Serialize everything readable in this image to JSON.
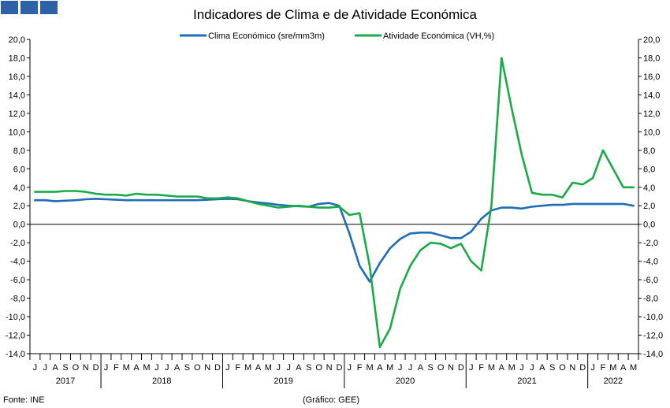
{
  "chart_data": {
    "type": "line",
    "title": "Indicadores de Clima e de Atividade Económica",
    "ylim": [
      -14,
      20
    ],
    "y_ticks": [
      "20,0",
      "18,0",
      "16,0",
      "14,0",
      "12,0",
      "10,0",
      "8,0",
      "6,0",
      "4,0",
      "2,0",
      "0,0",
      "-2,0",
      "-4,0",
      "-6,0",
      "-8,0",
      "-10,0",
      "-12,0",
      "-14,0"
    ],
    "month_labels": [
      "J",
      "J",
      "A",
      "S",
      "O",
      "N",
      "D",
      "J",
      "F",
      "M",
      "A",
      "M",
      "J",
      "J",
      "A",
      "S",
      "O",
      "N",
      "D",
      "J",
      "F",
      "M",
      "A",
      "M",
      "J",
      "J",
      "A",
      "S",
      "O",
      "N",
      "D",
      "J",
      "F",
      "M",
      "A",
      "M",
      "J",
      "J",
      "A",
      "S",
      "O",
      "N",
      "D",
      "J",
      "F",
      "M",
      "A",
      "M",
      "J",
      "J",
      "A",
      "S",
      "O",
      "N",
      "D",
      "J",
      "F",
      "M",
      "A",
      "M"
    ],
    "years": [
      {
        "label": "2017",
        "start": 0,
        "end": 7
      },
      {
        "label": "2018",
        "start": 7,
        "end": 19
      },
      {
        "label": "2019",
        "start": 19,
        "end": 31
      },
      {
        "label": "2020",
        "start": 31,
        "end": 43
      },
      {
        "label": "2021",
        "start": 43,
        "end": 55
      },
      {
        "label": "2022",
        "start": 55,
        "end": 60
      }
    ],
    "series": [
      {
        "name": "Clima Económico (sre/mm3m)",
        "color": "#1f6db7",
        "values": [
          2.6,
          2.6,
          2.5,
          2.55,
          2.6,
          2.7,
          2.75,
          2.7,
          2.65,
          2.6,
          2.6,
          2.6,
          2.6,
          2.6,
          2.6,
          2.6,
          2.6,
          2.65,
          2.7,
          2.75,
          2.7,
          2.5,
          2.35,
          2.25,
          2.1,
          2.0,
          1.95,
          1.9,
          2.2,
          2.3,
          2.0,
          -1.0,
          -4.5,
          -6.2,
          -4.2,
          -2.6,
          -1.6,
          -1.0,
          -0.9,
          -0.9,
          -1.2,
          -1.5,
          -1.5,
          -0.8,
          0.6,
          1.5,
          1.8,
          1.8,
          1.7,
          1.9,
          2.0,
          2.1,
          2.1,
          2.2,
          2.2,
          2.2,
          2.2,
          2.2,
          2.2,
          2.0
        ]
      },
      {
        "name": "Atividade Económica (VH,%)",
        "color": "#1aab48",
        "values": [
          3.5,
          3.5,
          3.5,
          3.6,
          3.6,
          3.5,
          3.3,
          3.2,
          3.2,
          3.1,
          3.3,
          3.2,
          3.2,
          3.1,
          3.0,
          3.0,
          3.0,
          2.8,
          2.8,
          2.9,
          2.8,
          2.5,
          2.2,
          2.0,
          1.8,
          1.9,
          2.0,
          1.9,
          1.8,
          1.8,
          1.9,
          1.0,
          1.2,
          -4.5,
          -13.3,
          -11.3,
          -7.0,
          -4.5,
          -2.8,
          -2.0,
          -2.1,
          -2.6,
          -2.1,
          -4.0,
          -5.0,
          2.0,
          18.0,
          12.5,
          7.5,
          3.4,
          3.2,
          3.2,
          2.9,
          4.5,
          4.3,
          5.0,
          8.0,
          6.0,
          4.0,
          4.0
        ]
      }
    ]
  },
  "footer": {
    "source": "Fonte: INE",
    "credit": "(Gráfico: GEE)"
  },
  "colors": {
    "logo": "#2e62a8",
    "axis": "#000000"
  }
}
